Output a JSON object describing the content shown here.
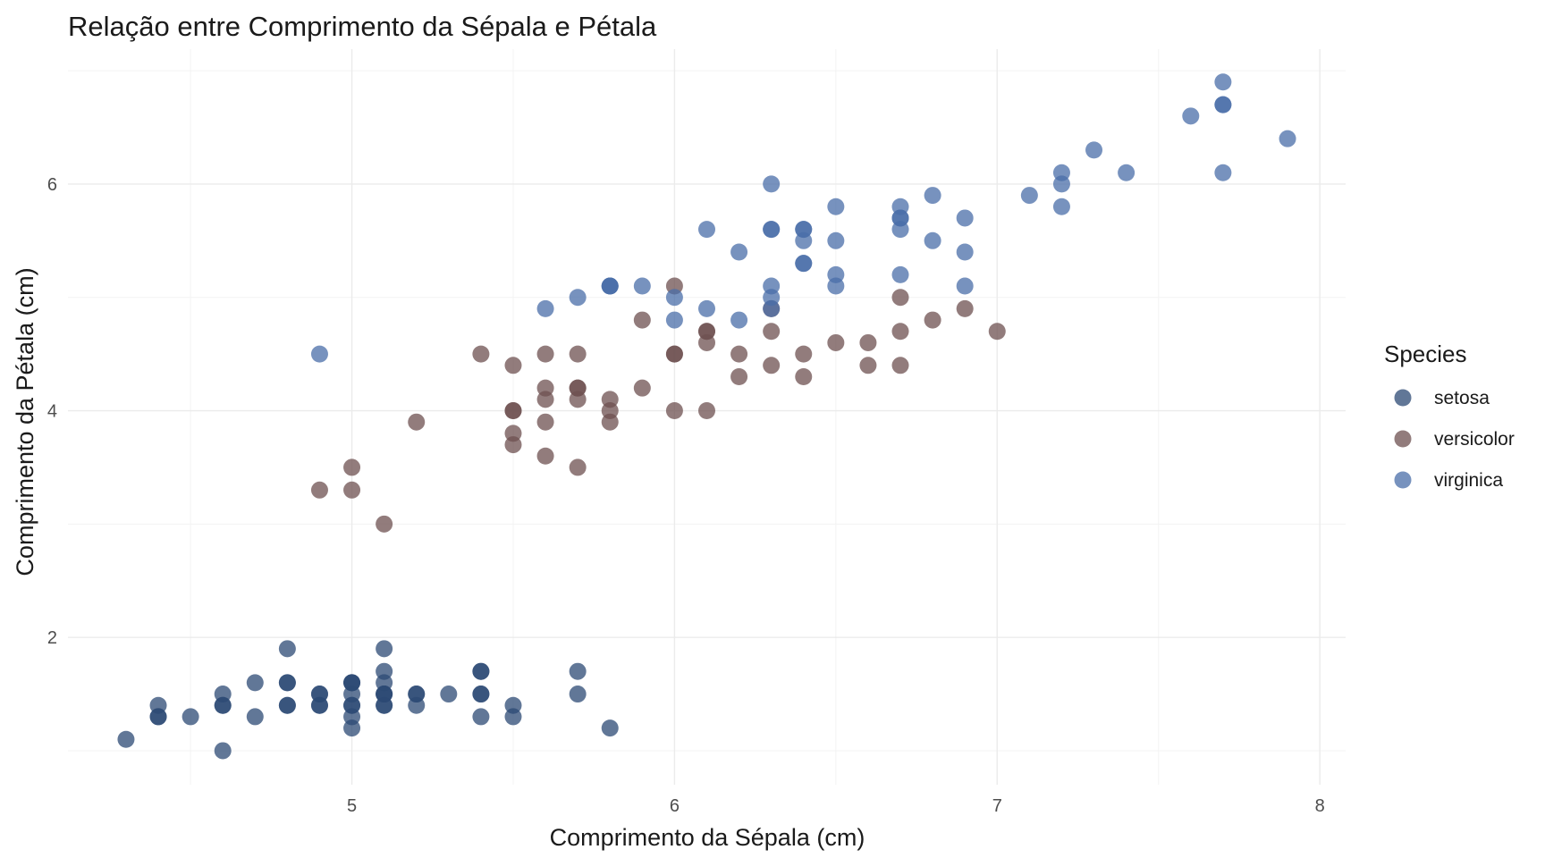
{
  "chart_data": {
    "type": "scatter",
    "title": "Relação entre Comprimento da Sépala e Pétala",
    "xlabel": "Comprimento da Sépala (cm)",
    "ylabel": "Comprimento da Pétala (cm)",
    "xlim": [
      4.12,
      8.08
    ],
    "ylim": [
      0.7,
      7.19
    ],
    "xticks": [
      5,
      6,
      7,
      8
    ],
    "yticks": [
      2,
      4,
      6
    ],
    "xtick_labels": [
      "5",
      "6",
      "7",
      "8"
    ],
    "ytick_labels": [
      "2",
      "4",
      "6"
    ],
    "xminor": [
      4.5,
      5.5,
      6.5,
      7.5
    ],
    "yminor": [
      1,
      3,
      5,
      7
    ],
    "grid": true,
    "legend": {
      "title": "Species",
      "position": "right"
    },
    "series": [
      {
        "name": "setosa",
        "color": "#2c4a74",
        "opacity": 0.75,
        "x": [
          5.1,
          4.9,
          4.7,
          4.6,
          5.0,
          5.4,
          4.6,
          5.0,
          4.4,
          4.9,
          5.4,
          4.8,
          4.8,
          4.3,
          5.8,
          5.7,
          5.4,
          5.1,
          5.7,
          5.1,
          5.4,
          5.1,
          4.6,
          5.1,
          4.8,
          5.0,
          5.0,
          5.2,
          5.2,
          4.7,
          4.8,
          5.4,
          5.2,
          5.5,
          4.9,
          5.0,
          5.5,
          4.9,
          4.4,
          5.1,
          5.0,
          4.5,
          4.4,
          5.0,
          5.1,
          4.8,
          5.1,
          4.6,
          5.3,
          5.0
        ],
        "y": [
          1.4,
          1.4,
          1.3,
          1.5,
          1.4,
          1.7,
          1.4,
          1.5,
          1.4,
          1.5,
          1.5,
          1.6,
          1.4,
          1.1,
          1.2,
          1.5,
          1.3,
          1.4,
          1.7,
          1.5,
          1.7,
          1.5,
          1.0,
          1.7,
          1.9,
          1.6,
          1.6,
          1.5,
          1.4,
          1.6,
          1.6,
          1.5,
          1.5,
          1.4,
          1.5,
          1.2,
          1.3,
          1.4,
          1.3,
          1.5,
          1.3,
          1.3,
          1.3,
          1.6,
          1.9,
          1.4,
          1.6,
          1.4,
          1.5,
          1.4
        ]
      },
      {
        "name": "versicolor",
        "color": "#6e5050",
        "opacity": 0.75,
        "x": [
          7.0,
          6.4,
          6.9,
          5.5,
          6.5,
          5.7,
          6.3,
          4.9,
          6.6,
          5.2,
          5.0,
          5.9,
          6.0,
          6.1,
          5.6,
          6.7,
          5.6,
          5.8,
          6.2,
          5.6,
          5.9,
          6.1,
          6.3,
          6.1,
          6.4,
          6.6,
          6.8,
          6.7,
          6.0,
          5.7,
          5.5,
          5.5,
          5.8,
          6.0,
          5.4,
          6.0,
          6.7,
          6.3,
          5.6,
          5.5,
          5.5,
          6.1,
          5.8,
          5.0,
          5.6,
          5.7,
          5.7,
          6.2,
          5.1,
          5.7
        ],
        "y": [
          4.7,
          4.5,
          4.9,
          4.0,
          4.6,
          4.5,
          4.7,
          3.3,
          4.6,
          3.9,
          3.5,
          4.2,
          4.0,
          4.7,
          3.6,
          4.4,
          4.5,
          4.1,
          4.5,
          3.9,
          4.8,
          4.0,
          4.9,
          4.7,
          4.3,
          4.4,
          4.8,
          5.0,
          4.5,
          3.5,
          3.8,
          3.7,
          3.9,
          5.1,
          4.5,
          4.5,
          4.7,
          4.4,
          4.1,
          4.0,
          4.4,
          4.6,
          4.0,
          3.3,
          4.2,
          4.2,
          4.2,
          4.3,
          3.0,
          4.1
        ]
      },
      {
        "name": "virginica",
        "color": "#4a6ea8",
        "opacity": 0.75,
        "x": [
          6.3,
          5.8,
          7.1,
          6.3,
          6.5,
          7.6,
          4.9,
          7.3,
          6.7,
          7.2,
          6.5,
          6.4,
          6.8,
          5.7,
          5.8,
          6.4,
          6.5,
          7.7,
          7.7,
          6.0,
          6.9,
          5.6,
          7.7,
          6.3,
          6.7,
          7.2,
          6.2,
          6.1,
          6.4,
          7.2,
          7.4,
          7.9,
          6.4,
          6.3,
          6.1,
          7.7,
          6.3,
          6.4,
          6.0,
          6.9,
          6.7,
          6.9,
          5.8,
          6.8,
          6.7,
          6.7,
          6.3,
          6.5,
          6.2,
          5.9
        ],
        "y": [
          6.0,
          5.1,
          5.9,
          5.6,
          5.8,
          6.6,
          4.5,
          6.3,
          5.8,
          6.1,
          5.1,
          5.3,
          5.5,
          5.0,
          5.1,
          5.3,
          5.5,
          6.7,
          6.9,
          5.0,
          5.7,
          4.9,
          6.7,
          4.9,
          5.7,
          6.0,
          4.8,
          4.9,
          5.6,
          5.8,
          6.1,
          6.4,
          5.6,
          5.1,
          5.6,
          6.1,
          5.6,
          5.5,
          4.8,
          5.4,
          5.6,
          5.1,
          5.1,
          5.9,
          5.7,
          5.2,
          5.0,
          5.2,
          5.4,
          5.1
        ]
      }
    ]
  }
}
